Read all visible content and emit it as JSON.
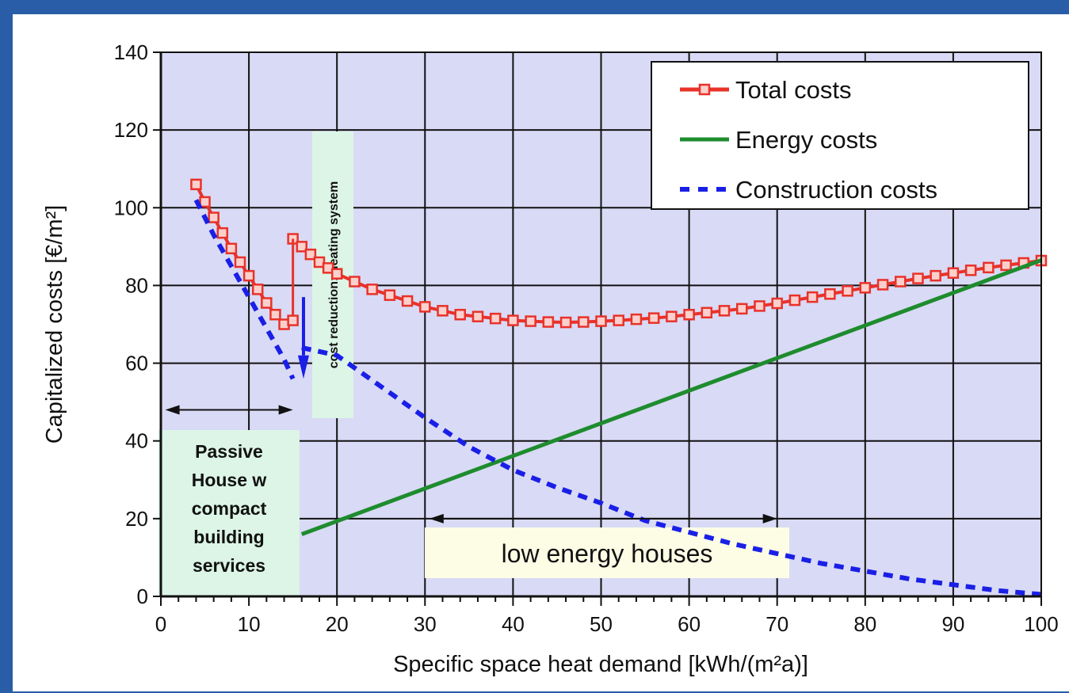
{
  "chart_data": {
    "type": "line",
    "xlabel": "Specific space  heat demand [kWh/(m²a)]",
    "ylabel": "Capitalized costs [€/m²]",
    "xlim": [
      0,
      100
    ],
    "ylim": [
      0,
      140
    ],
    "xticks": [
      0,
      10,
      20,
      30,
      40,
      50,
      60,
      70,
      80,
      90,
      100
    ],
    "yticks": [
      0,
      20,
      40,
      60,
      80,
      100,
      120,
      140
    ],
    "grid": true,
    "legend_position": "top-right",
    "series": [
      {
        "name": "Total costs",
        "style": "line-square-markers",
        "color": "#e8322a",
        "segments": [
          {
            "x": [
              4,
              5,
              6,
              7,
              8,
              9,
              10,
              11,
              12,
              13,
              14,
              15
            ],
            "y": [
              106,
              101.5,
              97.5,
              93.5,
              89.5,
              86,
              82.5,
              79,
              75.5,
              72.5,
              70,
              71
            ]
          },
          {
            "x": [
              15,
              16,
              17,
              18,
              19,
              20,
              22,
              24,
              26,
              28,
              30,
              32,
              34,
              36,
              38,
              40,
              42,
              44,
              46,
              48,
              50,
              52,
              54,
              56,
              58,
              60,
              62,
              64,
              66,
              68,
              70,
              72,
              74,
              76,
              78,
              80,
              82,
              84,
              86,
              88,
              90,
              92,
              94,
              96,
              98,
              100
            ],
            "y": [
              92,
              90,
              88,
              86,
              84.5,
              83,
              81,
              79,
              77.5,
              76,
              74.5,
              73.5,
              72.5,
              72,
              71.5,
              71,
              70.8,
              70.6,
              70.5,
              70.6,
              70.8,
              71,
              71.3,
              71.6,
              72,
              72.5,
              73,
              73.5,
              74,
              74.7,
              75.4,
              76.2,
              77,
              77.8,
              78.6,
              79.4,
              80.2,
              81,
              81.8,
              82.5,
              83.2,
              83.9,
              84.6,
              85.2,
              85.8,
              86.4
            ]
          }
        ]
      },
      {
        "name": "Energy costs",
        "style": "solid",
        "color": "#1e8c2e",
        "x": [
          16,
          100
        ],
        "y": [
          16,
          86.5
        ]
      },
      {
        "name": "Construction costs",
        "style": "dashed",
        "color": "#1a1fe6",
        "segments": [
          {
            "x": [
              4,
              6,
              8,
              10,
              12,
              14,
              15
            ],
            "y": [
              102,
              93,
              85,
              77,
              69,
              61,
              56
            ]
          },
          {
            "x": [
              16,
              20,
              25,
              30,
              35,
              40,
              45,
              50,
              55,
              60,
              65,
              70,
              75,
              80,
              85,
              90,
              95,
              100
            ],
            "y": [
              64,
              62,
              54,
              46,
              38.5,
              32.5,
              28,
              24,
              19.5,
              16.5,
              13.5,
              11,
              8.5,
              6.5,
              4.5,
              3,
              1.5,
              0.5
            ]
          }
        ]
      }
    ],
    "annotations": {
      "passive_house_label": [
        "Passive",
        "House w",
        "compact",
        "building",
        "services"
      ],
      "low_energy_label": "low energy houses",
      "cost_reduction_label": "cost reduction: heating system"
    }
  }
}
